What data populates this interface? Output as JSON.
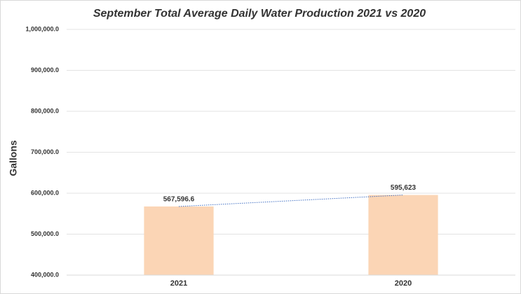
{
  "chart_data": {
    "type": "bar",
    "title": "September Total Average Daily  Water Production 2021 vs 2020",
    "y_label": "Gallons",
    "categories": [
      "2021",
      "2020"
    ],
    "values": [
      567596.6,
      595623
    ],
    "value_labels": [
      "567,596.6",
      "595,623"
    ],
    "color": "#fbd5b5",
    "trendline_color": "#4472c4",
    "ylim": [
      400000,
      1000000
    ],
    "yticks": [
      {
        "value": 400000,
        "label": "400,000.0"
      },
      {
        "value": 500000,
        "label": "500,000.0"
      },
      {
        "value": 600000,
        "label": "600,000.0"
      },
      {
        "value": 700000,
        "label": "700,000.0"
      },
      {
        "value": 800000,
        "label": "800,000.0"
      },
      {
        "value": 900000,
        "label": "900,000.0"
      },
      {
        "value": 1000000,
        "label": "1,000,000.0"
      }
    ],
    "grid": true
  }
}
